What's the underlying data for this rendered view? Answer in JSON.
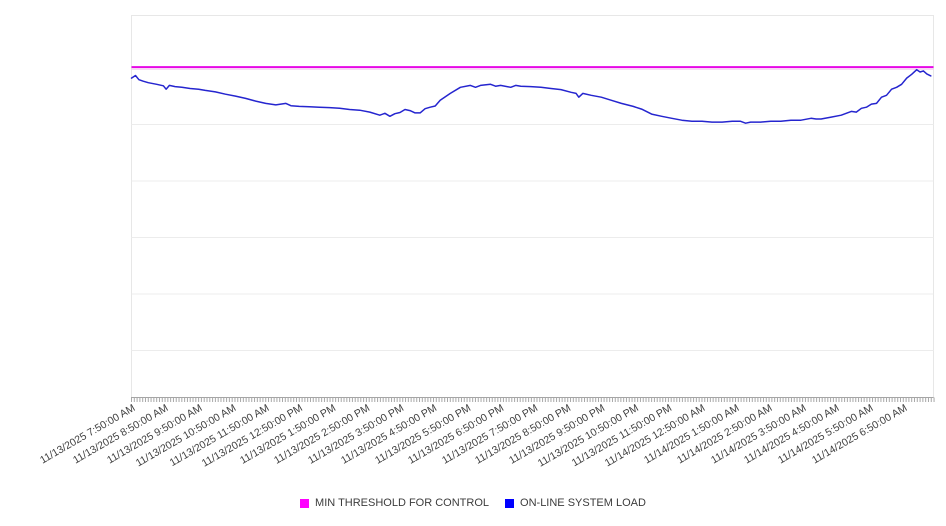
{
  "page": {
    "background": "#ffffff"
  },
  "colors": {
    "threshold_line": "#e607e6",
    "threshold_swatch": "#ff00ff",
    "series_line": "#2525cf",
    "series_swatch": "#0000ff",
    "gridline": "#ececec",
    "plot_border": "#e7e7e7",
    "axis_line": "#a5a5a5",
    "tick_mark": "#a8a8a8",
    "label_text": "#3f3f3f"
  },
  "legend": {
    "position": "bottom-center",
    "items": [
      {
        "label": "MIN THRESHOLD FOR CONTROL",
        "color": "#ff00ff",
        "marker": "square"
      },
      {
        "label": "ON-LINE SYSTEM LOAD",
        "color": "#0000ff",
        "marker": "square"
      }
    ]
  },
  "chart_data": {
    "type": "line",
    "title": "",
    "xlabel": "",
    "ylabel": "",
    "grid": true,
    "legend_position": "bottom-center",
    "x_axis": {
      "type": "datetime",
      "label_interval": "1 hour",
      "minor_tick_interval": "5 minutes",
      "span_hours": 23.9,
      "label_rotation_deg": -30,
      "tick_labels": [
        "11/13/2025 7:50:00 AM",
        "11/13/2025 8:50:00 AM",
        "11/13/2025 9:50:00 AM",
        "11/13/2025 10:50:00 AM",
        "11/13/2025 11:50:00 AM",
        "11/13/2025 12:50:00 PM",
        "11/13/2025 1:50:00 PM",
        "11/13/2025 2:50:00 PM",
        "11/13/2025 3:50:00 PM",
        "11/13/2025 4:50:00 PM",
        "11/13/2025 5:50:00 PM",
        "11/13/2025 6:50:00 PM",
        "11/13/2025 7:50:00 PM",
        "11/13/2025 8:50:00 PM",
        "11/13/2025 9:50:00 PM",
        "11/13/2025 10:50:00 PM",
        "11/13/2025 11:50:00 PM",
        "11/14/2025 12:50:00 AM",
        "11/14/2025 1:50:00 AM",
        "11/14/2025 2:50:00 AM",
        "11/14/2025 3:50:00 AM",
        "11/14/2025 4:50:00 AM",
        "11/14/2025 5:50:00 AM",
        "11/14/2025 6:50:00 AM"
      ]
    },
    "y_axis": {
      "tick_labels": [],
      "labels_visible": false,
      "unit": "unlabeled axis; series values expressed as percent of plot height",
      "ylim": [
        0,
        100
      ]
    },
    "series": [
      {
        "name": "MIN THRESHOLD FOR CONTROL",
        "type": "threshold",
        "color": "#e607e6",
        "value": 86.5
      },
      {
        "name": "ON-LINE SYSTEM LOAD",
        "type": "line",
        "color": "#2525cf",
        "x_unit": "hours since 11/13/2025 7:50:00 AM",
        "points": [
          [
            0,
            83.6
          ],
          [
            0.12,
            84.3
          ],
          [
            0.22,
            83.2
          ],
          [
            0.35,
            82.8
          ],
          [
            0.5,
            82.4
          ],
          [
            0.75,
            82.0
          ],
          [
            0.95,
            81.6
          ],
          [
            1.03,
            80.7
          ],
          [
            1.13,
            81.7
          ],
          [
            1.3,
            81.4
          ],
          [
            1.5,
            81.2
          ],
          [
            1.75,
            80.9
          ],
          [
            2.0,
            80.7
          ],
          [
            2.2,
            80.4
          ],
          [
            2.5,
            80.0
          ],
          [
            2.8,
            79.4
          ],
          [
            3.1,
            78.9
          ],
          [
            3.4,
            78.3
          ],
          [
            3.7,
            77.6
          ],
          [
            4.0,
            77.0
          ],
          [
            4.3,
            76.6
          ],
          [
            4.6,
            77.0
          ],
          [
            4.75,
            76.4
          ],
          [
            5.0,
            76.2
          ],
          [
            5.3,
            76.1
          ],
          [
            5.6,
            76.0
          ],
          [
            5.9,
            75.9
          ],
          [
            6.2,
            75.7
          ],
          [
            6.5,
            75.4
          ],
          [
            6.8,
            75.2
          ],
          [
            7.1,
            74.7
          ],
          [
            7.4,
            73.9
          ],
          [
            7.55,
            74.4
          ],
          [
            7.7,
            73.6
          ],
          [
            7.85,
            74.3
          ],
          [
            8.0,
            74.6
          ],
          [
            8.15,
            75.4
          ],
          [
            8.3,
            75.1
          ],
          [
            8.45,
            74.5
          ],
          [
            8.6,
            74.5
          ],
          [
            8.75,
            75.6
          ],
          [
            8.9,
            76.0
          ],
          [
            9.05,
            76.3
          ],
          [
            9.2,
            77.8
          ],
          [
            9.5,
            79.6
          ],
          [
            9.8,
            81.2
          ],
          [
            10.1,
            81.7
          ],
          [
            10.25,
            81.2
          ],
          [
            10.4,
            81.7
          ],
          [
            10.7,
            82.0
          ],
          [
            10.85,
            81.5
          ],
          [
            11.0,
            81.7
          ],
          [
            11.3,
            81.2
          ],
          [
            11.45,
            81.7
          ],
          [
            11.6,
            81.5
          ],
          [
            11.9,
            81.4
          ],
          [
            12.2,
            81.2
          ],
          [
            12.5,
            80.9
          ],
          [
            12.8,
            80.6
          ],
          [
            13.1,
            79.9
          ],
          [
            13.25,
            79.6
          ],
          [
            13.33,
            78.6
          ],
          [
            13.45,
            79.6
          ],
          [
            13.7,
            79.1
          ],
          [
            14.0,
            78.6
          ],
          [
            14.3,
            77.8
          ],
          [
            14.6,
            77.0
          ],
          [
            14.95,
            76.2
          ],
          [
            15.2,
            75.5
          ],
          [
            15.5,
            74.2
          ],
          [
            15.8,
            73.6
          ],
          [
            16.1,
            73.1
          ],
          [
            16.4,
            72.6
          ],
          [
            16.7,
            72.3
          ],
          [
            17.0,
            72.3
          ],
          [
            17.3,
            72.1
          ],
          [
            17.6,
            72.1
          ],
          [
            17.9,
            72.3
          ],
          [
            18.15,
            72.3
          ],
          [
            18.3,
            71.8
          ],
          [
            18.45,
            72.1
          ],
          [
            18.75,
            72.1
          ],
          [
            19.05,
            72.3
          ],
          [
            19.35,
            72.3
          ],
          [
            19.65,
            72.6
          ],
          [
            19.95,
            72.6
          ],
          [
            20.25,
            73.1
          ],
          [
            20.4,
            72.9
          ],
          [
            20.55,
            72.9
          ],
          [
            20.85,
            73.4
          ],
          [
            21.15,
            73.9
          ],
          [
            21.45,
            74.9
          ],
          [
            21.6,
            74.7
          ],
          [
            21.75,
            75.7
          ],
          [
            21.9,
            76.0
          ],
          [
            22.05,
            76.8
          ],
          [
            22.2,
            77.0
          ],
          [
            22.35,
            78.6
          ],
          [
            22.5,
            79.1
          ],
          [
            22.65,
            80.7
          ],
          [
            22.8,
            81.2
          ],
          [
            22.95,
            82.0
          ],
          [
            23.1,
            83.6
          ],
          [
            23.25,
            84.6
          ],
          [
            23.4,
            85.8
          ],
          [
            23.5,
            85.2
          ],
          [
            23.6,
            85.5
          ],
          [
            23.7,
            84.7
          ],
          [
            23.82,
            84.2
          ]
        ]
      }
    ]
  }
}
